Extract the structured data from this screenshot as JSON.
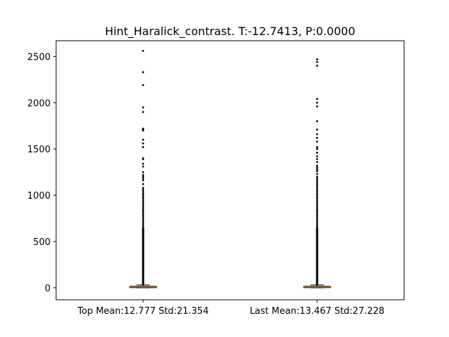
{
  "chart_data": {
    "type": "box",
    "title": "Hint_Haralick_contrast. T:-12.7413, P:0.0000",
    "categories": [
      "Top Mean:12.777 Std:21.354",
      "Last Mean:13.467 Std:27.228"
    ],
    "ylim": [
      -130,
      2670
    ],
    "yticks": [
      0,
      500,
      1000,
      1500,
      2000,
      2500
    ],
    "series": [
      {
        "q1": 2,
        "median": 7,
        "q3": 16,
        "whisker_low": 0,
        "whisker_high": 30,
        "fliers": [
          2560,
          2330,
          2190,
          1950,
          1900,
          1720,
          1710,
          1700,
          1600,
          1560,
          1520,
          1400,
          1390,
          1340,
          1310,
          1250,
          1220,
          1200,
          1180,
          1160,
          1120,
          1080,
          1060,
          1040,
          1020,
          1000,
          980,
          960,
          940,
          920,
          900,
          880,
          860,
          840,
          820,
          800,
          780,
          760,
          740,
          720,
          700,
          680,
          660,
          640,
          620,
          600,
          580,
          560,
          540,
          520,
          500,
          480,
          460,
          440,
          420,
          400,
          380,
          360,
          340,
          320,
          300,
          280,
          260,
          240,
          220,
          200,
          180,
          160,
          140,
          120,
          100,
          80,
          60,
          40
        ]
      },
      {
        "q1": 2,
        "median": 7,
        "q3": 16,
        "whisker_low": 0,
        "whisker_high": 30,
        "fliers": [
          2470,
          2440,
          2400,
          2040,
          2000,
          1960,
          1800,
          1710,
          1660,
          1620,
          1580,
          1520,
          1500,
          1460,
          1420,
          1390,
          1360,
          1320,
          1300,
          1280,
          1260,
          1230,
          1200,
          1180,
          1160,
          1140,
          1120,
          1100,
          1080,
          1060,
          1040,
          1020,
          1000,
          980,
          960,
          940,
          920,
          900,
          880,
          860,
          840,
          820,
          800,
          780,
          760,
          740,
          720,
          700,
          680,
          660,
          640,
          620,
          600,
          580,
          560,
          540,
          520,
          500,
          480,
          460,
          440,
          420,
          400,
          380,
          360,
          340,
          320,
          300,
          280,
          260,
          240,
          220,
          200,
          180,
          160,
          140,
          120,
          100,
          80,
          60,
          40
        ]
      }
    ],
    "colors": {
      "box_fill": "#9aa64b",
      "median": "#e08a1e",
      "axis": "#000000"
    },
    "grid": false
  }
}
